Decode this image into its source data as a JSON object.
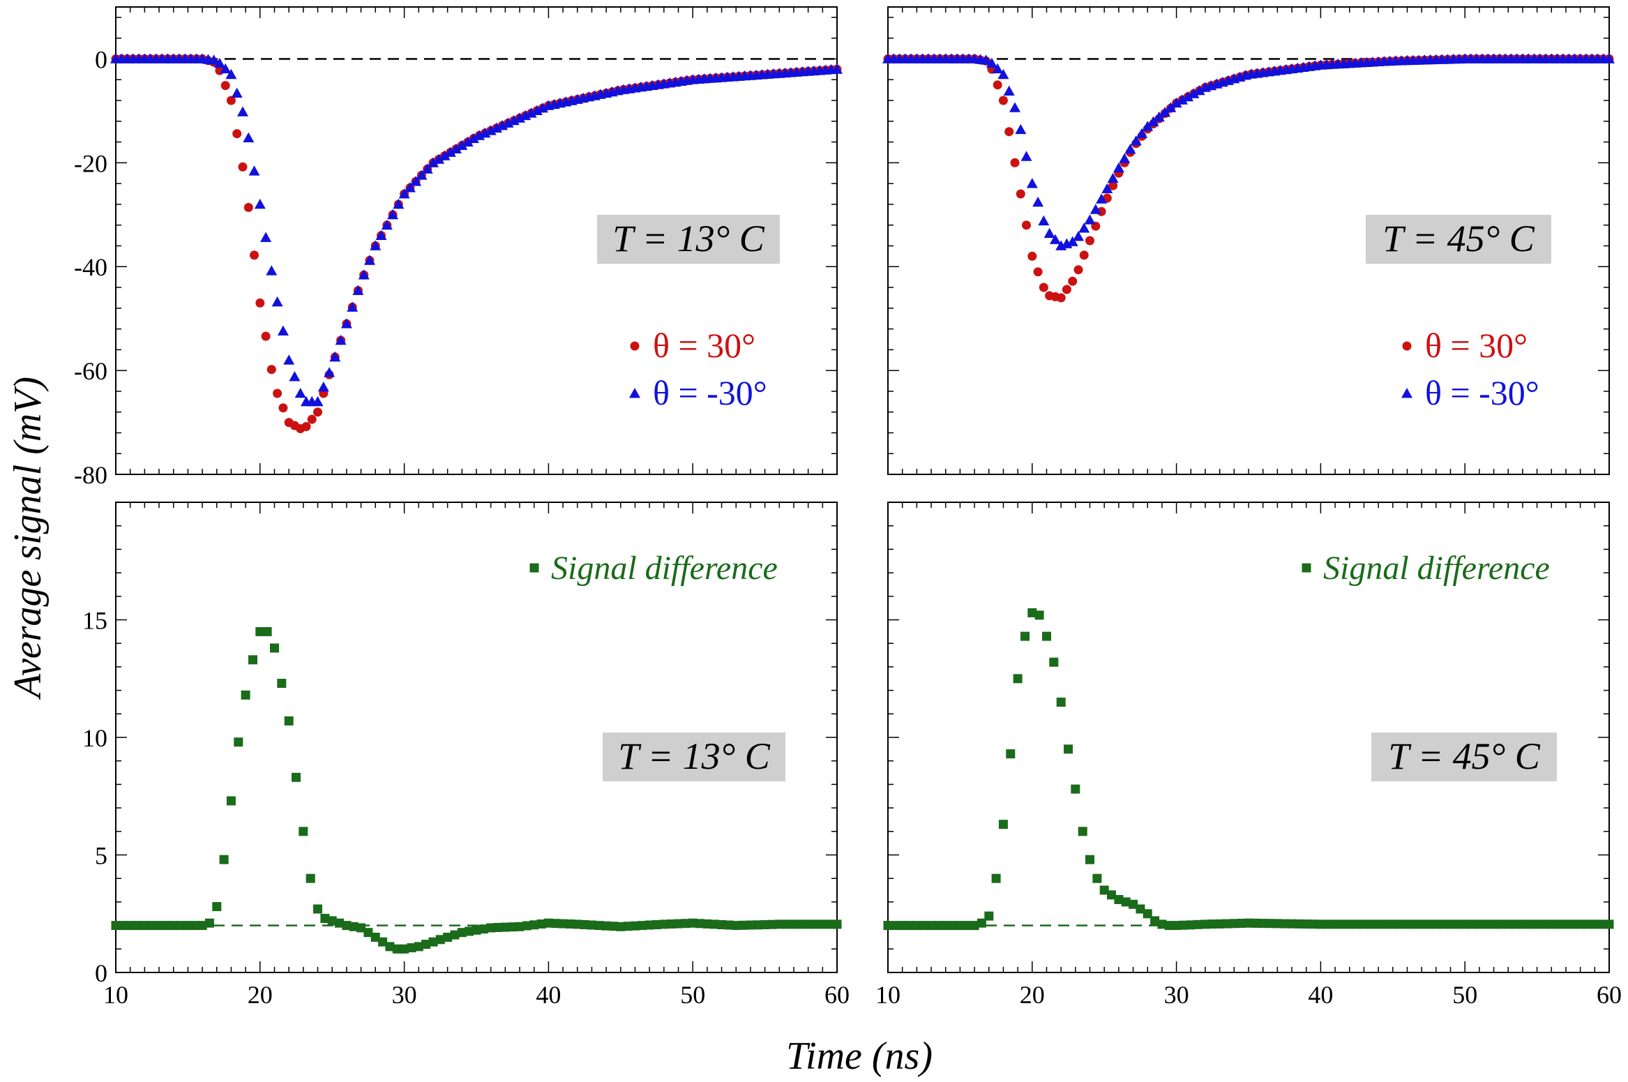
{
  "chart_data": [
    {
      "type": "scatter",
      "panel": "top-left",
      "temperature_label": "T = 13° C",
      "xlabel": "Time (ns)",
      "ylabel": "Average signal (mV)",
      "xlim": [
        10,
        60
      ],
      "ylim": [
        -80,
        10
      ],
      "y_ticks": [
        "0",
        "-20",
        "-40",
        "-60",
        "-80"
      ],
      "reference_line": 0,
      "legend_position": "right-center",
      "series": [
        {
          "name": "θ = 30°",
          "marker": "circle",
          "color": "#cc1111",
          "x": [
            10,
            16,
            17,
            18,
            19,
            20,
            21,
            22,
            23,
            24,
            25,
            26,
            27,
            28,
            30,
            32,
            35,
            40,
            45,
            50,
            55,
            60
          ],
          "y": [
            0,
            0,
            -0.8,
            -8,
            -24,
            -47,
            -63,
            -70,
            -71.5,
            -68,
            -59,
            -51,
            -43,
            -36,
            -26,
            -20,
            -15,
            -9,
            -6,
            -4,
            -3,
            -2
          ]
        },
        {
          "name": "θ = -30°",
          "marker": "triangle",
          "color": "#1111dd",
          "x": [
            10,
            16,
            17,
            18,
            19,
            20,
            21,
            22,
            23,
            24,
            25,
            26,
            27,
            28,
            30,
            32,
            35,
            40,
            45,
            50,
            55,
            60
          ],
          "y": [
            0,
            0,
            -0.3,
            -3,
            -12,
            -28,
            -44,
            -58,
            -66,
            -66,
            -59,
            -51,
            -43,
            -36,
            -26,
            -20,
            -15,
            -9,
            -6,
            -4,
            -3,
            -2
          ]
        }
      ]
    },
    {
      "type": "scatter",
      "panel": "top-right",
      "temperature_label": "T = 45° C",
      "xlim": [
        10,
        60
      ],
      "ylim": [
        -80,
        10
      ],
      "reference_line": 0,
      "legend_position": "right-center",
      "series": [
        {
          "name": "θ = 30°",
          "marker": "circle",
          "color": "#cc1111",
          "x": [
            10,
            16,
            17,
            18,
            19,
            20,
            21,
            22,
            23,
            24,
            25,
            26,
            27,
            28,
            30,
            32,
            35,
            40,
            45,
            50,
            55,
            60
          ],
          "y": [
            0,
            0,
            -0.5,
            -8,
            -23,
            -38,
            -45.5,
            -46,
            -42,
            -35,
            -28,
            -22,
            -17,
            -13.5,
            -8.5,
            -5.5,
            -3,
            -1.2,
            -0.4,
            0,
            0,
            0
          ]
        },
        {
          "name": "θ = -30°",
          "marker": "triangle",
          "color": "#1111dd",
          "x": [
            10,
            16,
            17,
            18,
            19,
            20,
            21,
            22,
            23,
            24,
            25,
            26,
            27,
            28,
            30,
            32,
            35,
            40,
            45,
            50,
            55,
            60
          ],
          "y": [
            0,
            0,
            -0.3,
            -3,
            -11,
            -24,
            -33,
            -36,
            -35,
            -31,
            -26,
            -21,
            -16.5,
            -13,
            -8.5,
            -5.5,
            -3,
            -1.2,
            -0.4,
            0,
            0,
            0
          ]
        }
      ]
    },
    {
      "type": "scatter",
      "panel": "bottom-left",
      "temperature_label": "T = 13° C",
      "xlabel": "Time (ns)",
      "xlim": [
        10,
        60
      ],
      "ylim": [
        0,
        20
      ],
      "x_ticks": [
        "10",
        "20",
        "30",
        "40",
        "50",
        "60"
      ],
      "y_ticks": [
        "0",
        "5",
        "10",
        "15"
      ],
      "reference_line": 2,
      "legend_position": "top-right",
      "series": [
        {
          "name": "Signal difference",
          "marker": "square",
          "color": "#1a6b1a",
          "x": [
            10,
            15,
            16,
            16.5,
            17,
            17.5,
            18,
            18.5,
            19,
            19.5,
            20,
            20.5,
            21,
            21.5,
            22,
            22.5,
            23,
            23.5,
            24,
            24.5,
            25,
            25.5,
            26,
            27,
            28,
            29,
            29.5,
            30,
            31,
            32,
            33,
            34,
            35,
            36,
            38,
            40,
            42,
            45,
            48,
            50,
            53,
            56,
            60
          ],
          "y": [
            2,
            2,
            2,
            2.1,
            2.8,
            4.8,
            7.3,
            9.8,
            11.8,
            13.3,
            14.5,
            14.5,
            13.8,
            12.3,
            10.7,
            8.3,
            6,
            4,
            2.7,
            2.3,
            2.2,
            2.1,
            2,
            1.9,
            1.5,
            1.1,
            1,
            1,
            1.1,
            1.3,
            1.5,
            1.7,
            1.8,
            1.9,
            1.95,
            2.1,
            2.05,
            1.95,
            2.05,
            2.1,
            2,
            2.05,
            2.05
          ]
        }
      ]
    },
    {
      "type": "scatter",
      "panel": "bottom-right",
      "temperature_label": "T = 45° C",
      "xlabel": "Time (ns)",
      "xlim": [
        10,
        60
      ],
      "ylim": [
        0,
        20
      ],
      "x_ticks": [
        "10",
        "20",
        "30",
        "40",
        "50",
        "60"
      ],
      "reference_line": 2,
      "legend_position": "top-right",
      "series": [
        {
          "name": "Signal difference",
          "marker": "square",
          "color": "#1a6b1a",
          "x": [
            10,
            16,
            16.5,
            17,
            17.5,
            18,
            18.5,
            19,
            19.5,
            20,
            20.5,
            21,
            21.5,
            22,
            22.5,
            23,
            23.5,
            24,
            24.5,
            25,
            25.5,
            26,
            26.5,
            27,
            27.5,
            28,
            28.5,
            29,
            29.5,
            30,
            32,
            35,
            40,
            45,
            50,
            55,
            60
          ],
          "y": [
            2,
            2,
            2.1,
            2.4,
            4,
            6.3,
            9.3,
            12.5,
            14.3,
            15.3,
            15.2,
            14.3,
            13.2,
            11.5,
            9.5,
            7.8,
            6,
            4.8,
            4,
            3.5,
            3.3,
            3.1,
            3,
            2.9,
            2.7,
            2.5,
            2.2,
            2.05,
            2,
            2,
            2.05,
            2.1,
            2.05,
            2.05,
            2.05,
            2.05,
            2.05
          ]
        }
      ]
    }
  ]
}
